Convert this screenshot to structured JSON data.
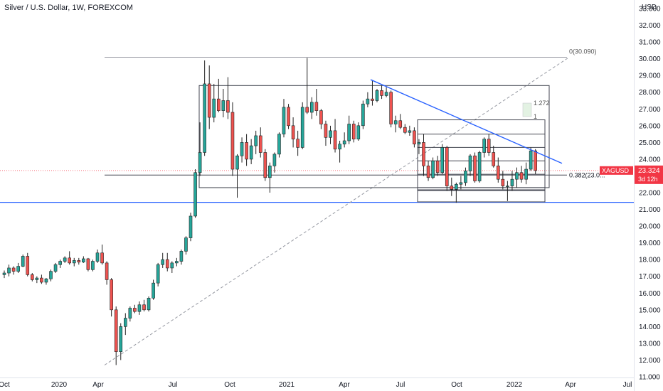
{
  "chart_data": {
    "type": "candlestick",
    "title": "Silver / U.S. Dollar, 1W, FOREXCOM",
    "currency": "USD",
    "ylim": [
      11.0,
      33.5
    ],
    "y_ticks": [
      "11.000",
      "12.000",
      "13.000",
      "14.000",
      "15.000",
      "16.000",
      "17.000",
      "18.000",
      "19.000",
      "20.000",
      "21.000",
      "22.000",
      "23.000",
      "24.000",
      "25.000",
      "26.000",
      "27.000",
      "28.000",
      "29.000",
      "30.000",
      "31.000",
      "32.000",
      "33.000"
    ],
    "x_ticks": [
      "Oct",
      "2020",
      "Apr",
      "Jul",
      "Oct",
      "2021",
      "Apr",
      "Jul",
      "Oct",
      "2022",
      "Apr",
      "Jul"
    ],
    "grid": false,
    "symbol_tag": {
      "symbol": "XAGUSD",
      "price": "23.324",
      "countdown": "3d 12h",
      "color": "#f23645"
    },
    "last_price": 23.324,
    "colors": {
      "up": "#26a69a",
      "down": "#ef5350",
      "trend": "#2962ff",
      "box": "#434651",
      "fib": "#9598a1"
    },
    "fib_levels": [
      {
        "label": "0(30.090)",
        "value": 30.09
      },
      {
        "label": "0.382(23.0...",
        "value": 23.05
      },
      {
        "label": "1.272",
        "value": 27.35
      },
      {
        "label": "1",
        "value": 26.55
      }
    ],
    "horizontal_line": {
      "value": 21.42,
      "color": "#2962ff"
    },
    "candles": [
      {
        "o": 17.1,
        "h": 17.35,
        "l": 16.9,
        "c": 17.2
      },
      {
        "o": 17.2,
        "h": 17.7,
        "l": 17.0,
        "c": 17.5
      },
      {
        "o": 17.5,
        "h": 17.6,
        "l": 17.1,
        "c": 17.3
      },
      {
        "o": 17.3,
        "h": 17.8,
        "l": 17.2,
        "c": 17.6
      },
      {
        "o": 17.6,
        "h": 18.3,
        "l": 17.55,
        "c": 18.2
      },
      {
        "o": 18.2,
        "h": 18.4,
        "l": 17.0,
        "c": 17.1
      },
      {
        "o": 17.1,
        "h": 17.2,
        "l": 16.7,
        "c": 16.8
      },
      {
        "o": 16.8,
        "h": 17.0,
        "l": 16.6,
        "c": 16.9
      },
      {
        "o": 16.9,
        "h": 17.1,
        "l": 16.55,
        "c": 16.65
      },
      {
        "o": 16.65,
        "h": 16.9,
        "l": 16.5,
        "c": 16.85
      },
      {
        "o": 16.85,
        "h": 17.4,
        "l": 16.7,
        "c": 17.3
      },
      {
        "o": 17.3,
        "h": 17.8,
        "l": 17.2,
        "c": 17.7
      },
      {
        "o": 17.7,
        "h": 18.0,
        "l": 17.5,
        "c": 17.9
      },
      {
        "o": 17.9,
        "h": 18.2,
        "l": 17.8,
        "c": 18.1
      },
      {
        "o": 18.1,
        "h": 18.5,
        "l": 17.7,
        "c": 17.8
      },
      {
        "o": 17.8,
        "h": 18.1,
        "l": 17.6,
        "c": 17.95
      },
      {
        "o": 17.95,
        "h": 18.1,
        "l": 17.7,
        "c": 17.85
      },
      {
        "o": 17.85,
        "h": 18.2,
        "l": 17.8,
        "c": 18.05
      },
      {
        "o": 18.05,
        "h": 18.1,
        "l": 17.3,
        "c": 17.4
      },
      {
        "o": 17.4,
        "h": 18.0,
        "l": 17.3,
        "c": 17.9
      },
      {
        "o": 17.9,
        "h": 18.6,
        "l": 17.8,
        "c": 18.4
      },
      {
        "o": 18.4,
        "h": 18.9,
        "l": 17.7,
        "c": 17.8
      },
      {
        "o": 17.8,
        "h": 17.9,
        "l": 16.5,
        "c": 16.8
      },
      {
        "o": 16.8,
        "h": 16.9,
        "l": 14.6,
        "c": 15.0
      },
      {
        "o": 15.0,
        "h": 15.2,
        "l": 11.7,
        "c": 12.5
      },
      {
        "o": 12.5,
        "h": 14.2,
        "l": 12.0,
        "c": 14.0
      },
      {
        "o": 14.0,
        "h": 14.8,
        "l": 13.5,
        "c": 14.5
      },
      {
        "o": 14.5,
        "h": 15.2,
        "l": 14.3,
        "c": 15.1
      },
      {
        "o": 15.1,
        "h": 15.3,
        "l": 14.8,
        "c": 14.9
      },
      {
        "o": 14.9,
        "h": 15.5,
        "l": 14.7,
        "c": 15.3
      },
      {
        "o": 15.3,
        "h": 15.6,
        "l": 14.9,
        "c": 15.0
      },
      {
        "o": 15.0,
        "h": 15.8,
        "l": 14.9,
        "c": 15.7
      },
      {
        "o": 15.7,
        "h": 16.8,
        "l": 15.6,
        "c": 16.6
      },
      {
        "o": 16.6,
        "h": 17.8,
        "l": 16.4,
        "c": 17.7
      },
      {
        "o": 17.7,
        "h": 18.4,
        "l": 17.5,
        "c": 18.0
      },
      {
        "o": 18.0,
        "h": 18.4,
        "l": 17.3,
        "c": 17.5
      },
      {
        "o": 17.5,
        "h": 17.9,
        "l": 17.2,
        "c": 17.8
      },
      {
        "o": 17.8,
        "h": 18.1,
        "l": 17.6,
        "c": 17.9
      },
      {
        "o": 17.9,
        "h": 18.6,
        "l": 17.7,
        "c": 18.5
      },
      {
        "o": 18.5,
        "h": 19.4,
        "l": 18.3,
        "c": 19.3
      },
      {
        "o": 19.3,
        "h": 20.8,
        "l": 19.1,
        "c": 20.6
      },
      {
        "o": 20.6,
        "h": 23.4,
        "l": 20.5,
        "c": 23.2
      },
      {
        "o": 23.2,
        "h": 26.2,
        "l": 23.0,
        "c": 24.4
      },
      {
        "o": 24.4,
        "h": 29.9,
        "l": 24.2,
        "c": 28.5
      },
      {
        "o": 28.5,
        "h": 29.6,
        "l": 25.8,
        "c": 26.5
      },
      {
        "o": 26.5,
        "h": 28.5,
        "l": 26.2,
        "c": 27.6
      },
      {
        "o": 27.6,
        "h": 28.8,
        "l": 26.8,
        "c": 26.9
      },
      {
        "o": 26.9,
        "h": 28.2,
        "l": 26.5,
        "c": 27.5
      },
      {
        "o": 27.5,
        "h": 28.9,
        "l": 26.4,
        "c": 26.8
      },
      {
        "o": 26.8,
        "h": 27.4,
        "l": 23.0,
        "c": 23.4
      },
      {
        "o": 23.4,
        "h": 24.3,
        "l": 21.7,
        "c": 24.2
      },
      {
        "o": 24.2,
        "h": 25.3,
        "l": 23.8,
        "c": 25.0
      },
      {
        "o": 25.0,
        "h": 25.5,
        "l": 23.6,
        "c": 24.0
      },
      {
        "o": 24.0,
        "h": 25.2,
        "l": 23.7,
        "c": 24.8
      },
      {
        "o": 24.8,
        "h": 25.7,
        "l": 24.3,
        "c": 25.4
      },
      {
        "o": 25.4,
        "h": 25.9,
        "l": 24.1,
        "c": 24.4
      },
      {
        "o": 24.4,
        "h": 24.6,
        "l": 22.7,
        "c": 22.9
      },
      {
        "o": 22.9,
        "h": 23.8,
        "l": 22.0,
        "c": 23.6
      },
      {
        "o": 23.6,
        "h": 24.4,
        "l": 23.2,
        "c": 24.3
      },
      {
        "o": 24.3,
        "h": 25.6,
        "l": 24.1,
        "c": 25.5
      },
      {
        "o": 25.5,
        "h": 27.6,
        "l": 25.3,
        "c": 27.1
      },
      {
        "o": 27.1,
        "h": 27.3,
        "l": 25.8,
        "c": 26.0
      },
      {
        "o": 26.0,
        "h": 26.5,
        "l": 24.7,
        "c": 25.2
      },
      {
        "o": 25.2,
        "h": 25.7,
        "l": 24.2,
        "c": 24.7
      },
      {
        "o": 24.7,
        "h": 27.4,
        "l": 24.6,
        "c": 27.1
      },
      {
        "o": 27.1,
        "h": 30.05,
        "l": 26.7,
        "c": 26.8
      },
      {
        "o": 26.8,
        "h": 27.7,
        "l": 26.4,
        "c": 27.4
      },
      {
        "o": 27.4,
        "h": 28.2,
        "l": 26.6,
        "c": 26.9
      },
      {
        "o": 26.9,
        "h": 27.0,
        "l": 25.8,
        "c": 26.1
      },
      {
        "o": 26.1,
        "h": 26.3,
        "l": 24.8,
        "c": 25.3
      },
      {
        "o": 25.3,
        "h": 26.0,
        "l": 24.9,
        "c": 25.7
      },
      {
        "o": 25.7,
        "h": 26.4,
        "l": 24.4,
        "c": 24.6
      },
      {
        "o": 24.6,
        "h": 25.1,
        "l": 23.8,
        "c": 24.9
      },
      {
        "o": 24.9,
        "h": 25.6,
        "l": 24.7,
        "c": 25.1
      },
      {
        "o": 25.1,
        "h": 26.6,
        "l": 24.9,
        "c": 26.1
      },
      {
        "o": 26.1,
        "h": 26.3,
        "l": 25.0,
        "c": 25.2
      },
      {
        "o": 25.2,
        "h": 26.2,
        "l": 25.1,
        "c": 26.0
      },
      {
        "o": 26.0,
        "h": 27.5,
        "l": 25.8,
        "c": 27.3
      },
      {
        "o": 27.3,
        "h": 28.0,
        "l": 27.1,
        "c": 27.6
      },
      {
        "o": 27.6,
        "h": 28.7,
        "l": 27.2,
        "c": 27.5
      },
      {
        "o": 27.5,
        "h": 28.2,
        "l": 27.4,
        "c": 28.1
      },
      {
        "o": 28.1,
        "h": 28.4,
        "l": 27.6,
        "c": 27.8
      },
      {
        "o": 27.8,
        "h": 28.3,
        "l": 27.7,
        "c": 28.0
      },
      {
        "o": 28.0,
        "h": 28.1,
        "l": 25.9,
        "c": 26.1
      },
      {
        "o": 26.1,
        "h": 26.6,
        "l": 25.6,
        "c": 26.3
      },
      {
        "o": 26.3,
        "h": 26.7,
        "l": 25.8,
        "c": 25.9
      },
      {
        "o": 25.9,
        "h": 26.1,
        "l": 25.5,
        "c": 25.6
      },
      {
        "o": 25.6,
        "h": 26.0,
        "l": 25.4,
        "c": 25.7
      },
      {
        "o": 25.7,
        "h": 25.9,
        "l": 24.7,
        "c": 24.9
      },
      {
        "o": 24.9,
        "h": 25.2,
        "l": 24.3,
        "c": 25.0
      },
      {
        "o": 25.0,
        "h": 25.5,
        "l": 23.0,
        "c": 23.6
      },
      {
        "o": 23.6,
        "h": 23.9,
        "l": 22.7,
        "c": 22.9
      },
      {
        "o": 22.9,
        "h": 24.1,
        "l": 22.8,
        "c": 23.9
      },
      {
        "o": 23.9,
        "h": 24.2,
        "l": 23.0,
        "c": 23.2
      },
      {
        "o": 23.2,
        "h": 24.9,
        "l": 23.1,
        "c": 24.7
      },
      {
        "o": 24.7,
        "h": 24.8,
        "l": 22.1,
        "c": 22.4
      },
      {
        "o": 22.4,
        "h": 22.9,
        "l": 21.8,
        "c": 22.2
      },
      {
        "o": 22.2,
        "h": 22.6,
        "l": 21.4,
        "c": 22.5
      },
      {
        "o": 22.5,
        "h": 23.0,
        "l": 22.2,
        "c": 22.6
      },
      {
        "o": 22.6,
        "h": 23.5,
        "l": 22.4,
        "c": 23.3
      },
      {
        "o": 23.3,
        "h": 24.3,
        "l": 23.0,
        "c": 24.2
      },
      {
        "o": 24.2,
        "h": 24.4,
        "l": 22.6,
        "c": 22.7
      },
      {
        "o": 22.7,
        "h": 24.5,
        "l": 22.6,
        "c": 24.4
      },
      {
        "o": 24.4,
        "h": 25.3,
        "l": 24.1,
        "c": 25.2
      },
      {
        "o": 25.2,
        "h": 25.5,
        "l": 24.2,
        "c": 24.4
      },
      {
        "o": 24.4,
        "h": 24.8,
        "l": 23.5,
        "c": 23.6
      },
      {
        "o": 23.6,
        "h": 24.1,
        "l": 22.6,
        "c": 22.8
      },
      {
        "o": 22.8,
        "h": 23.3,
        "l": 22.2,
        "c": 22.4
      },
      {
        "o": 22.4,
        "h": 22.7,
        "l": 21.5,
        "c": 22.4
      },
      {
        "o": 22.4,
        "h": 23.3,
        "l": 22.1,
        "c": 22.8
      },
      {
        "o": 22.8,
        "h": 23.5,
        "l": 22.3,
        "c": 23.2
      },
      {
        "o": 23.2,
        "h": 23.6,
        "l": 22.6,
        "c": 22.8
      },
      {
        "o": 22.8,
        "h": 23.8,
        "l": 22.5,
        "c": 23.4
      },
      {
        "o": 23.4,
        "h": 24.7,
        "l": 23.3,
        "c": 24.5
      },
      {
        "o": 24.5,
        "h": 24.6,
        "l": 23.1,
        "c": 23.32
      }
    ]
  }
}
